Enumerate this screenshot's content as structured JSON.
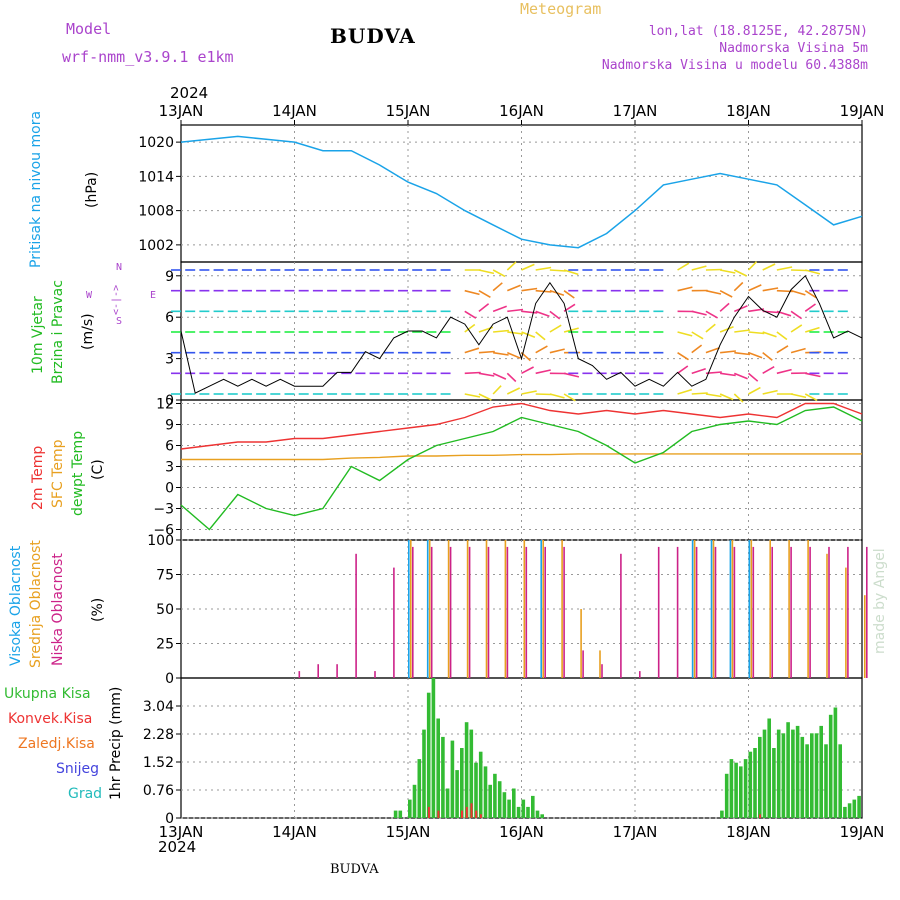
{
  "header": {
    "model_label": "Model",
    "model_name": "wrf-nmm_v3.9.1 e1km",
    "station": "BUDVA",
    "product": "Meteogram",
    "lonlat": "lon,lat (18.8125E, 42.2875N)",
    "elev": "Nadmorska Visina 5m",
    "elev_model": "Nadmorska Visina u modelu 60.4388m",
    "footer_station": "BUDVA",
    "watermark": "made by Angel"
  },
  "time_axis": {
    "year": "2024",
    "ticks": [
      "13JAN",
      "14JAN",
      "15JAN",
      "16JAN",
      "17JAN",
      "18JAN",
      "19JAN"
    ]
  },
  "colors": {
    "pressure": "#1aa3e8",
    "temp2m": "#ee3333",
    "sfc": "#e8a020",
    "dewpt": "#22bb22",
    "high": "#1aa3e8",
    "mid": "#e8a020",
    "low": "#cc2288",
    "precip_total": "#33bb33",
    "precip_conv": "#ee3333",
    "precip_frozen": "#ee7722",
    "snow": "#4444dd",
    "grad": "#22bbbb",
    "wind_label": "#22bb22",
    "wind_compass": "#aa44cc"
  },
  "panels": {
    "pressure": {
      "label": "Pritisak na nivou mora",
      "unit": "(hPa)"
    },
    "wind": {
      "label1": "10m Vjetar",
      "label2": "Brzina i Pravac",
      "unit": "(m/s)",
      "compass_n": "N",
      "compass_s": "S",
      "compass_w": "W",
      "compass_e": "E",
      "compass_mid": "<-|->"
    },
    "temp": {
      "label1": "2m Temp",
      "label2": "SFC Temp",
      "label3": "dewpt Temp",
      "unit": "(C)"
    },
    "cloud": {
      "label1": "Visoka Oblacnost",
      "label2": "Srednja Oblacnost",
      "label3": "Niska Oblacnost",
      "unit": "(%)"
    },
    "precip": {
      "unit": "1hr Precip (mm)",
      "legend": [
        "Ukupna Kisa",
        "Konvek.Kisa",
        "Zaledj.Kisa",
        "Snijeg",
        "Grad"
      ]
    }
  },
  "chart_data": [
    {
      "type": "line",
      "name": "pressure",
      "x_hours": [
        0,
        6,
        12,
        18,
        24,
        30,
        36,
        42,
        48,
        54,
        60,
        66,
        72,
        78,
        84,
        90,
        96,
        102,
        108,
        114,
        120,
        126,
        132,
        138,
        144
      ],
      "values": [
        1020,
        1020.5,
        1021,
        1020.5,
        1020,
        1018.5,
        1018.5,
        1016,
        1013,
        1011,
        1008,
        1005.5,
        1003,
        1002,
        1001.5,
        1004,
        1008,
        1012.5,
        1013.5,
        1014.5,
        1013.5,
        1012.5,
        1009,
        1005.5,
        1007
      ],
      "yticks": [
        1002,
        1008,
        1014,
        1020
      ],
      "ylim": [
        999,
        1023
      ]
    },
    {
      "type": "line",
      "name": "wind",
      "x_hours": [
        0,
        3,
        6,
        9,
        12,
        15,
        18,
        21,
        24,
        27,
        30,
        33,
        36,
        39,
        42,
        45,
        48,
        51,
        54,
        57,
        60,
        63,
        66,
        69,
        72,
        75,
        78,
        81,
        84,
        87,
        90,
        93,
        96,
        99,
        102,
        105,
        108,
        111,
        114,
        117,
        120,
        123,
        126,
        129,
        132,
        135,
        138,
        141,
        144
      ],
      "values": [
        5,
        0.5,
        1,
        1.5,
        1,
        1.5,
        1,
        1.5,
        1,
        1,
        1,
        2,
        2,
        3.5,
        3,
        4.5,
        5,
        5,
        4.5,
        6,
        5.5,
        4,
        5.5,
        6,
        3,
        7,
        8.5,
        7,
        3,
        2.5,
        1.5,
        2,
        1,
        1.5,
        1,
        2,
        1,
        1.5,
        4,
        6,
        7.5,
        6.5,
        6,
        8,
        9,
        7,
        4.5,
        5,
        4.5
      ],
      "yticks": [
        0,
        3,
        6,
        9
      ],
      "ylim": [
        0,
        10
      ]
    },
    {
      "type": "line",
      "name": "temperature",
      "x_hours": [
        0,
        6,
        12,
        18,
        24,
        30,
        36,
        42,
        48,
        54,
        60,
        66,
        72,
        78,
        84,
        90,
        96,
        102,
        108,
        114,
        120,
        126,
        132,
        138,
        144
      ],
      "series": [
        {
          "name": "2m Temp",
          "values": [
            5.5,
            6,
            6.5,
            6.5,
            7,
            7,
            7.5,
            8,
            8.5,
            9,
            10,
            11.5,
            12,
            11,
            10.5,
            11,
            10.5,
            11,
            10.5,
            10,
            10.5,
            10,
            12,
            12,
            10.5
          ]
        },
        {
          "name": "SFC Temp",
          "values": [
            4,
            4,
            4,
            4,
            4,
            4,
            4.2,
            4.3,
            4.5,
            4.5,
            4.6,
            4.6,
            4.7,
            4.7,
            4.8,
            4.8,
            4.8,
            4.8,
            4.8,
            4.8,
            4.8,
            4.8,
            4.8,
            4.8,
            4.8
          ]
        },
        {
          "name": "dewpt Temp",
          "values": [
            -2.5,
            -6,
            -1,
            -3,
            -4,
            -3,
            3,
            1,
            4,
            6,
            7,
            8,
            10,
            9,
            8,
            6,
            3.5,
            5,
            8,
            9,
            9.5,
            9,
            11,
            11.5,
            9.5
          ]
        }
      ],
      "yticks": [
        -6,
        -3,
        0,
        3,
        6,
        9,
        12
      ],
      "ylim": [
        -7.5,
        12.5
      ]
    },
    {
      "type": "bar",
      "name": "cloud",
      "x_hours": [
        0,
        6,
        12,
        18,
        24,
        28,
        32,
        36,
        40,
        44,
        48,
        52,
        56,
        60,
        64,
        68,
        72,
        76,
        80,
        84,
        88,
        92,
        96,
        100,
        104,
        108,
        112,
        116,
        120,
        124,
        128,
        132,
        136,
        140,
        144
      ],
      "series": [
        {
          "name": "Visoka",
          "values": [
            0,
            0,
            0,
            0,
            0,
            0,
            0,
            0,
            0,
            0,
            100,
            100,
            0,
            0,
            0,
            0,
            0,
            100,
            0,
            0,
            0,
            0,
            0,
            0,
            0,
            100,
            100,
            100,
            100,
            0,
            0,
            0,
            0,
            0,
            0
          ]
        },
        {
          "name": "Srednja",
          "values": [
            0,
            0,
            0,
            0,
            0,
            0,
            0,
            0,
            0,
            0,
            100,
            100,
            100,
            100,
            100,
            100,
            100,
            100,
            100,
            50,
            20,
            0,
            0,
            0,
            0,
            100,
            100,
            100,
            100,
            100,
            100,
            100,
            90,
            80,
            60
          ]
        },
        {
          "name": "Niska",
          "values": [
            0,
            0,
            0,
            0,
            5,
            10,
            10,
            90,
            5,
            80,
            95,
            95,
            95,
            95,
            95,
            95,
            95,
            95,
            95,
            20,
            10,
            90,
            5,
            95,
            95,
            95,
            95,
            95,
            95,
            95,
            95,
            95,
            95,
            95,
            95
          ]
        }
      ],
      "yticks": [
        0,
        25,
        50,
        75,
        100
      ],
      "ylim": [
        0,
        100
      ]
    },
    {
      "type": "bar",
      "name": "precipitation",
      "x_hours": [
        45,
        46,
        48,
        49,
        50,
        51,
        52,
        53,
        54,
        55,
        56,
        57,
        58,
        59,
        60,
        61,
        62,
        63,
        64,
        65,
        66,
        67,
        68,
        69,
        70,
        71,
        72,
        73,
        74,
        75,
        76,
        114,
        115,
        116,
        117,
        118,
        119,
        120,
        121,
        122,
        123,
        124,
        125,
        126,
        127,
        128,
        129,
        130,
        131,
        132,
        133,
        134,
        135,
        136,
        137,
        138,
        139,
        140,
        141,
        142,
        143
      ],
      "series": [
        {
          "name": "Ukupna Kisa",
          "values": [
            0.2,
            0.2,
            0.5,
            0.9,
            1.6,
            2.4,
            3.4,
            3.8,
            2.7,
            2.2,
            0.8,
            2.1,
            1.3,
            1.9,
            2.6,
            2.4,
            1.5,
            1.8,
            1.4,
            0.9,
            1.2,
            1.0,
            0.7,
            0.5,
            0.8,
            0.3,
            0.5,
            0.3,
            0.6,
            0.2,
            0.1,
            0.2,
            1.2,
            1.6,
            1.5,
            1.4,
            1.6,
            1.8,
            1.9,
            2.2,
            2.4,
            2.7,
            1.9,
            2.4,
            2.3,
            2.6,
            2.4,
            2.5,
            2.2,
            2.0,
            2.3,
            2.3,
            2.5,
            2.0,
            2.8,
            3.0,
            2.0,
            0.3,
            0.4,
            0.5,
            0.6
          ]
        },
        {
          "name": "Konvek.Kisa",
          "values": [
            0,
            0,
            0,
            0,
            0,
            0,
            0.3,
            0,
            0.2,
            0,
            0,
            0,
            0,
            0.2,
            0.3,
            0.4,
            0.2,
            0.1,
            0,
            0,
            0,
            0,
            0,
            0,
            0,
            0,
            0,
            0,
            0,
            0,
            0,
            0,
            0,
            0,
            0,
            0,
            0,
            0,
            0,
            0.1,
            0,
            0,
            0,
            0,
            0,
            0,
            0,
            0,
            0,
            0,
            0,
            0,
            0,
            0,
            0,
            0,
            0,
            0,
            0,
            0,
            0
          ]
        }
      ],
      "yticks": [
        0,
        0.76,
        1.52,
        2.28,
        3.04
      ],
      "ylim": [
        0,
        3.8
      ]
    }
  ]
}
